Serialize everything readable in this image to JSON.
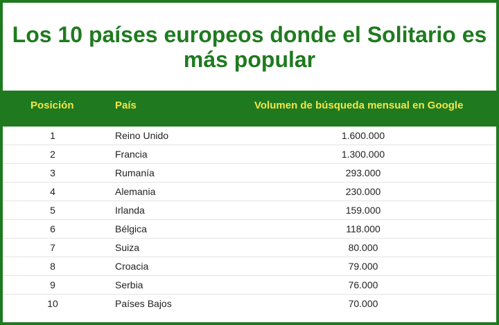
{
  "title": "Los 10 países europeos donde el Solitario es más popular",
  "colors": {
    "accent": "#1f7a1f",
    "header_text": "#f3e64a"
  },
  "table": {
    "headers": {
      "position": "Posición",
      "country": "País",
      "volume": "Volumen de búsqueda mensual en Google"
    },
    "rows": [
      {
        "position": "1",
        "country": "Reino Unido",
        "volume": "1.600.000"
      },
      {
        "position": "2",
        "country": "Francia",
        "volume": "1.300.000"
      },
      {
        "position": "3",
        "country": "Rumanía",
        "volume": "293.000"
      },
      {
        "position": "4",
        "country": "Alemania",
        "volume": "230.000"
      },
      {
        "position": "5",
        "country": "Irlanda",
        "volume": "159.000"
      },
      {
        "position": "6",
        "country": "Bélgica",
        "volume": "118.000"
      },
      {
        "position": "7",
        "country": "Suiza",
        "volume": "80.000"
      },
      {
        "position": "8",
        "country": "Croacia",
        "volume": "79.000"
      },
      {
        "position": "9",
        "country": "Serbia",
        "volume": "76.000"
      },
      {
        "position": "10",
        "country": "Países Bajos",
        "volume": "70.000"
      }
    ]
  }
}
